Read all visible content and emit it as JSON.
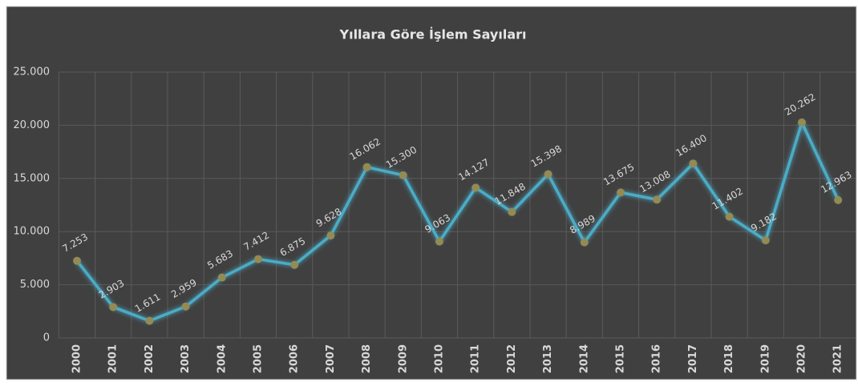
{
  "chart_data": {
    "type": "line",
    "title": "Yıllara Göre İşlem Sayıları",
    "categories": [
      "2000",
      "2001",
      "2002",
      "2003",
      "2004",
      "2005",
      "2006",
      "2007",
      "2008",
      "2009",
      "2010",
      "2011",
      "2012",
      "2013",
      "2014",
      "2015",
      "2016",
      "2017",
      "2018",
      "2019",
      "2020",
      "2021"
    ],
    "values": [
      7253,
      2903,
      1611,
      2959,
      5683,
      7412,
      6875,
      9628,
      16062,
      15300,
      9063,
      14127,
      11848,
      15398,
      8989,
      13675,
      13008,
      16400,
      11402,
      9182,
      20262,
      12963
    ],
    "value_labels": [
      "7.253",
      "2.903",
      "1.611",
      "2.959",
      "5.683",
      "7.412",
      "6.875",
      "9.628",
      "16.062",
      "15.300",
      "9.063",
      "14.127",
      "11.848",
      "15.398",
      "8.989",
      "13.675",
      "13.008",
      "16.400",
      "11.402",
      "9.182",
      "20.262",
      "12.963"
    ],
    "color": "#4bacc6",
    "marker_color": "#948a54",
    "ylim": [
      0,
      25000
    ],
    "yticks": [
      0,
      {
        "value": 5000,
        "label": "5.000"
      },
      {
        "value": 10000,
        "label": "10.000"
      },
      {
        "value": 15000,
        "label": "15.000"
      },
      {
        "value": 20000,
        "label": "20.000"
      },
      {
        "value": 25000,
        "label": "25.000"
      }
    ],
    "grid": true
  }
}
